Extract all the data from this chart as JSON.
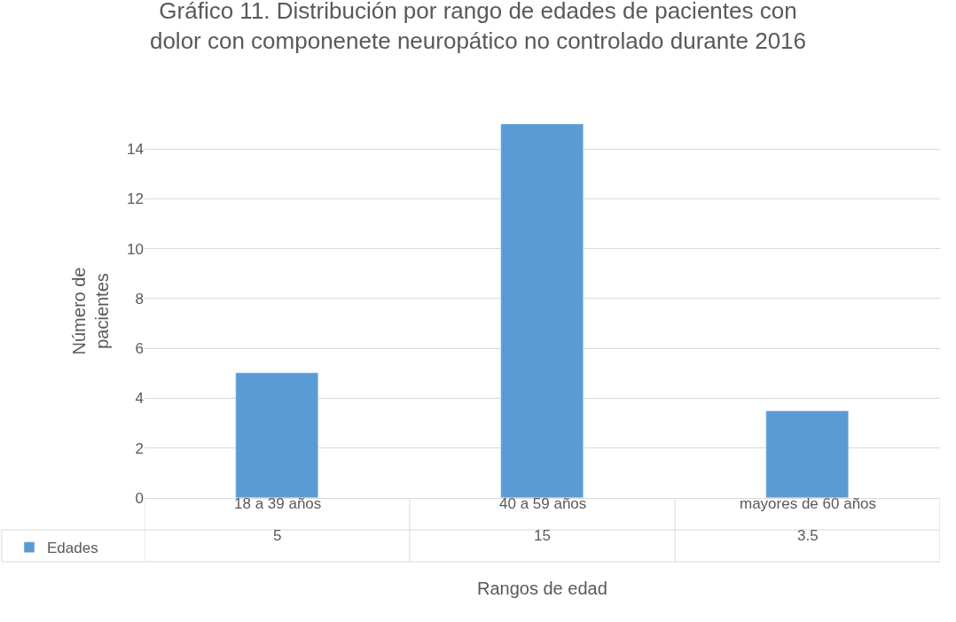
{
  "chart_data": {
    "type": "bar",
    "title": "Gráfico 11. Distribución por rango de edades de pacientes con dolor con componenete neuropático no controlado durante 2016",
    "xlabel": "Rangos de edad",
    "ylabel": "Número de pacientes",
    "categories": [
      "18 a 39 años",
      "40 a 59 años",
      "mayores de 60 años"
    ],
    "series": [
      {
        "name": "Edades",
        "color": "#5b9bd5",
        "values": [
          5,
          15,
          3.5
        ]
      }
    ],
    "ylim": [
      0,
      15
    ],
    "yticks": [
      0,
      2,
      4,
      6,
      8,
      10,
      12,
      14
    ],
    "grid": "y",
    "legend": "bottom left",
    "data_labels": true
  }
}
